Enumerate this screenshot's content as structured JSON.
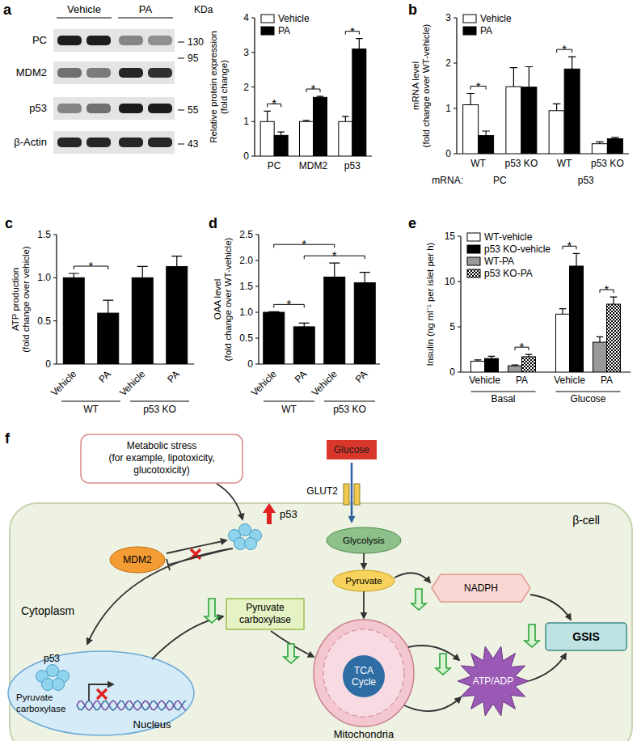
{
  "blot": {
    "panel": "a",
    "lanes": [
      "Vehicle",
      "PA"
    ],
    "rows": [
      "PC",
      "MDM2",
      "p53",
      "β-Actin"
    ],
    "band_intensity": [
      [
        0.95,
        0.95,
        0.45,
        0.4
      ],
      [
        0.55,
        0.5,
        0.9,
        0.85
      ],
      [
        0.45,
        0.55,
        0.95,
        0.95
      ],
      [
        0.9,
        0.9,
        0.9,
        0.9
      ]
    ],
    "marker_unit": "KDa",
    "markers": [
      130,
      95,
      55,
      43
    ]
  },
  "chart_data": [
    {
      "type": "bar",
      "categories": [
        "PC",
        "MDM2",
        "p53"
      ],
      "ylabel": [
        "Relative protein expression",
        "(fold change)"
      ],
      "ylim": [
        0,
        4
      ],
      "yticks": [
        0,
        1,
        2,
        3,
        4
      ],
      "legend": "upper left",
      "series": [
        {
          "name": "Vehicle",
          "color": "#ffffff",
          "values": [
            1.0,
            1.0,
            1.0
          ],
          "errors": [
            0.3,
            0.03,
            0.15
          ]
        },
        {
          "name": "PA",
          "color": "#000000",
          "values": [
            0.6,
            1.7,
            3.1
          ],
          "errors": [
            0.1,
            0.03,
            0.3
          ]
        }
      ],
      "annotations": [
        {
          "text": "*",
          "from": [
            0,
            0
          ],
          "to": [
            0,
            1
          ]
        },
        {
          "text": "*",
          "from": [
            1,
            0
          ],
          "to": [
            1,
            1
          ]
        },
        {
          "text": "*",
          "from": [
            2,
            0
          ],
          "to": [
            2,
            1
          ]
        }
      ]
    },
    {
      "panel": "b",
      "type": "bar",
      "categories": [
        "WT",
        "p53 KO",
        "WT",
        "p53 KO"
      ],
      "xlabel": "mRNA:",
      "groups": [
        "PC",
        "p53"
      ],
      "ylabel": [
        "mRNA level",
        "(fold change over WT-vehicle)"
      ],
      "ylim": [
        0,
        3
      ],
      "yticks": [
        0,
        1,
        2,
        3
      ],
      "legend": "upper left",
      "series": [
        {
          "name": "Vehicle",
          "color": "#ffffff",
          "values": [
            1.08,
            1.48,
            0.95,
            0.22
          ],
          "errors": [
            0.25,
            0.42,
            0.15,
            0.04
          ]
        },
        {
          "name": "PA",
          "color": "#000000",
          "values": [
            0.4,
            1.47,
            1.87,
            0.33
          ],
          "errors": [
            0.1,
            0.45,
            0.27,
            0.03
          ]
        }
      ],
      "annotations": [
        {
          "text": "*",
          "from": [
            0,
            0
          ],
          "to": [
            0,
            1
          ]
        },
        {
          "text": "*",
          "from": [
            2,
            0
          ],
          "to": [
            2,
            1
          ]
        }
      ]
    },
    {
      "panel": "c",
      "type": "bar",
      "categories": [
        "Vehicle",
        "PA",
        "Vehicle",
        "PA"
      ],
      "groups": [
        "WT",
        "p53 KO"
      ],
      "ylabel": [
        "ATP production",
        "(fold change over vehicle)"
      ],
      "ylim": [
        0,
        1.5
      ],
      "yticks": [
        0,
        0.5,
        {
          "value": 1,
          "label": "1.0"
        },
        1.5
      ],
      "series": [
        {
          "color": "#000000",
          "values": [
            1.0,
            0.59,
            1.0,
            1.13
          ],
          "errors": [
            0.05,
            0.15,
            0.13,
            0.12
          ]
        }
      ],
      "annotations": [
        {
          "text": "*",
          "from": [
            0,
            0
          ],
          "to": [
            1,
            0
          ]
        }
      ]
    },
    {
      "panel": "d",
      "type": "bar",
      "categories": [
        "Vehicle",
        "PA",
        "Vehicle",
        "PA"
      ],
      "groups": [
        "WT",
        "p53 KO"
      ],
      "ylabel": [
        "OAA level",
        "(fold change over WT-vehicle)"
      ],
      "ylim": [
        0,
        2.5
      ],
      "yticks": [
        0,
        0.5,
        {
          "value": 1,
          "label": "1.0"
        },
        1.5,
        {
          "value": 2,
          "label": "2.0"
        },
        2.5
      ],
      "series": [
        {
          "color": "#000000",
          "values": [
            1.0,
            0.72,
            1.68,
            1.57
          ],
          "errors": [
            0.01,
            0.07,
            0.27,
            0.2
          ]
        }
      ],
      "annotations": [
        {
          "text": "*",
          "from": [
            0,
            0
          ],
          "to": [
            1,
            0
          ]
        },
        {
          "text": "*",
          "from": [
            1,
            0
          ],
          "to": [
            3,
            0
          ]
        },
        {
          "text": "*",
          "from": [
            0,
            0
          ],
          "to": [
            2,
            0
          ]
        }
      ]
    },
    {
      "panel": "e",
      "type": "bar",
      "categories": [
        "Basal",
        "Glucose"
      ],
      "subgroups": [
        "Vehicle",
        "PA"
      ],
      "ylabel": "Insulin (ng ml⁻¹ per islet per h)",
      "ylim": [
        0,
        15
      ],
      "yticks": [
        0,
        5,
        10,
        15
      ],
      "legend": "upper left",
      "series": [
        {
          "name": "WT-vehicle",
          "color": "#ffffff",
          "values": [
            1.2,
            6.4
          ],
          "errors": [
            0.15,
            0.6
          ]
        },
        {
          "name": "p53 KO-vehicle",
          "color": "#000000",
          "values": [
            1.5,
            11.7
          ],
          "errors": [
            0.25,
            1.4
          ]
        },
        {
          "name": "WT-PA",
          "color": "#999999",
          "values": [
            0.7,
            3.3
          ],
          "errors": [
            0.1,
            0.6
          ]
        },
        {
          "name": "p53 KO-PA",
          "color": "#ffffff",
          "marker": "checkered",
          "values": [
            1.7,
            7.5
          ],
          "errors": [
            0.25,
            0.8
          ]
        }
      ],
      "annotations": [
        {
          "text": "*",
          "from": [
            0,
            2
          ],
          "to": [
            0,
            3
          ]
        },
        {
          "text": "*",
          "from": [
            1,
            0
          ],
          "to": [
            1,
            1
          ]
        },
        {
          "text": "*",
          "from": [
            1,
            2
          ],
          "to": [
            1,
            3
          ]
        }
      ]
    }
  ],
  "diagram": {
    "panel": "f",
    "stress": [
      "Metabolic stress",
      "(for example, lipotoxicity,",
      "glucotoxicity)"
    ],
    "glucose": "Glucose",
    "transporter": "GLUT2",
    "cell": "β-cell",
    "p53": "p53",
    "mdm2": "MDM2",
    "glycolysis": "Glycolysis",
    "pyruvate": "Pyruvate",
    "compartment": "Cytoplasm",
    "enzyme": [
      "Pyruvate",
      "carboxylase"
    ],
    "nadph": "NADPH",
    "tca": [
      "TCA",
      "Cycle"
    ],
    "mitochondria": "Mitochondria",
    "nucleus": "Nucleus",
    "nuclear_p53": "p53",
    "gene": [
      "Pyruvate",
      "carboxylase"
    ],
    "atp": "ATP/ADP",
    "output": "GSIS"
  }
}
